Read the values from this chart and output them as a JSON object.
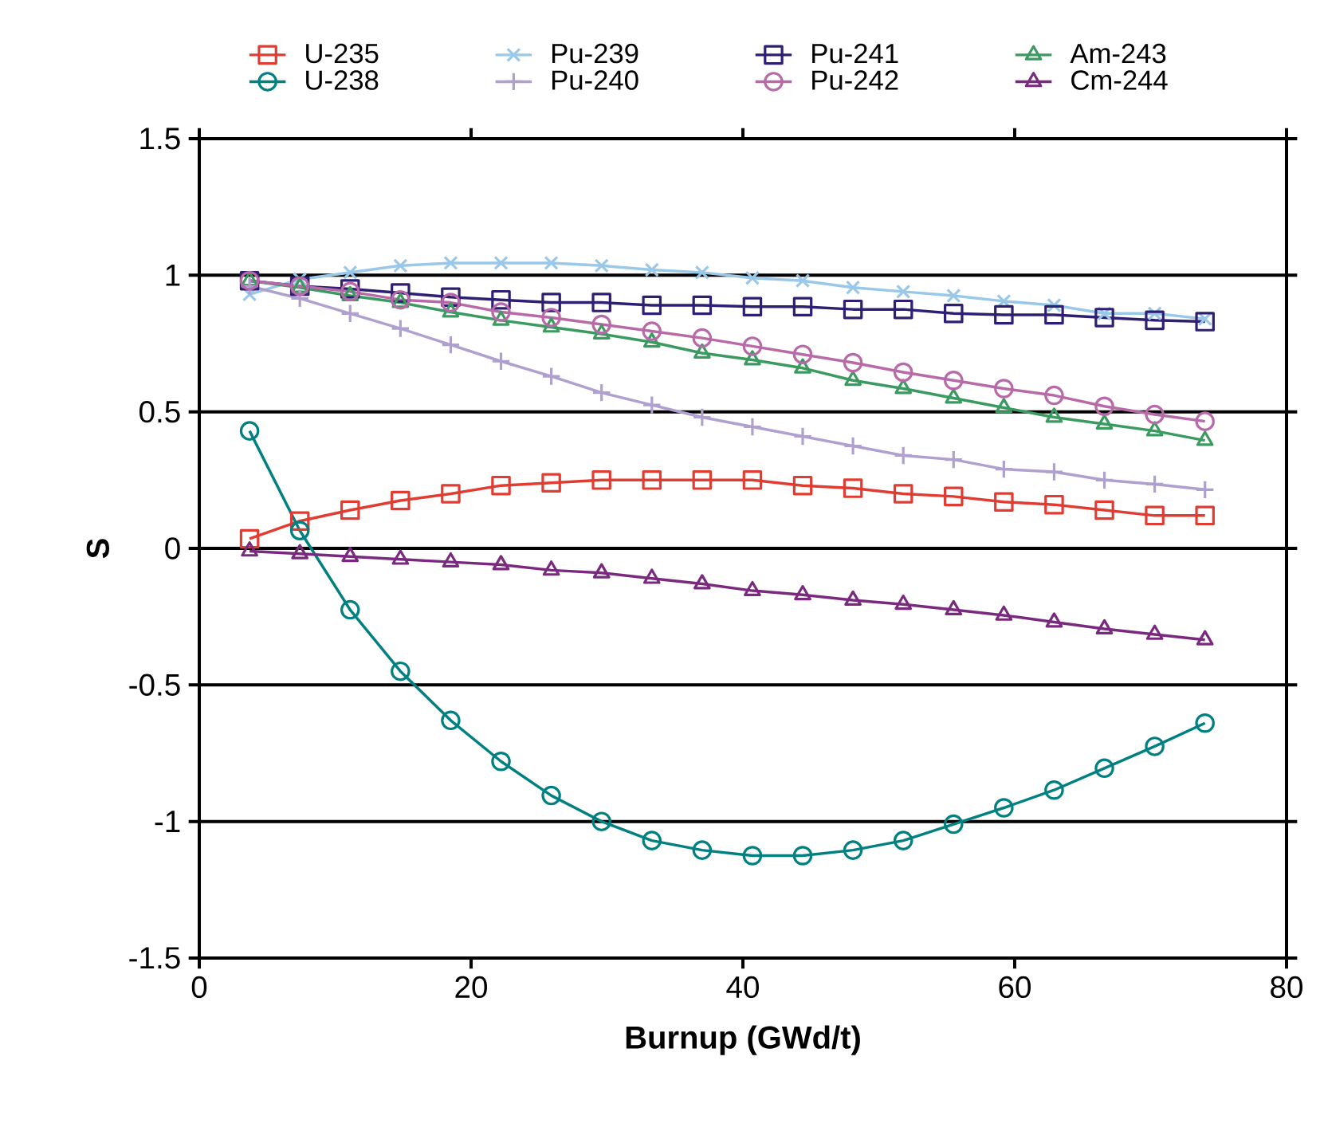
{
  "chart_data": {
    "type": "line",
    "xlabel": "Burnup (GWd/t)",
    "ylabel": "S",
    "x": [
      3.7,
      7.4,
      11.1,
      14.8,
      18.5,
      22.2,
      25.9,
      29.6,
      33.3,
      37.0,
      40.7,
      44.4,
      48.1,
      51.8,
      55.5,
      59.2,
      62.9,
      66.6,
      70.3,
      74.0
    ],
    "xlim": [
      0,
      80
    ],
    "xticks": [
      0,
      20,
      40,
      60,
      80
    ],
    "ylim": [
      -1.5,
      1.5
    ],
    "yticks": [
      -1.5,
      -1,
      -0.5,
      0,
      0.5,
      1,
      1.5
    ],
    "grid": "y",
    "legend": "top",
    "line_style": "solid",
    "series": [
      {
        "name": "U-235",
        "color": "#e03c31",
        "marker": "square",
        "values": [
          0.035,
          0.1,
          0.14,
          0.175,
          0.2,
          0.23,
          0.24,
          0.25,
          0.25,
          0.25,
          0.25,
          0.23,
          0.22,
          0.2,
          0.19,
          0.17,
          0.16,
          0.14,
          0.12,
          0.12
        ]
      },
      {
        "name": "Pu-239",
        "color": "#99c8e8",
        "marker": "cross",
        "values": [
          0.93,
          0.985,
          1.01,
          1.035,
          1.045,
          1.045,
          1.045,
          1.035,
          1.02,
          1.01,
          0.99,
          0.98,
          0.955,
          0.94,
          0.925,
          0.905,
          0.89,
          0.86,
          0.86,
          0.84
        ]
      },
      {
        "name": "Pu-241",
        "color": "#2e1f73",
        "marker": "square",
        "values": [
          0.98,
          0.96,
          0.95,
          0.935,
          0.92,
          0.91,
          0.9,
          0.9,
          0.89,
          0.89,
          0.885,
          0.885,
          0.875,
          0.875,
          0.86,
          0.855,
          0.855,
          0.845,
          0.835,
          0.83
        ]
      },
      {
        "name": "Am-243",
        "color": "#3a9a60",
        "marker": "triangle",
        "values": [
          0.98,
          0.955,
          0.925,
          0.9,
          0.865,
          0.835,
          0.81,
          0.785,
          0.755,
          0.715,
          0.69,
          0.66,
          0.615,
          0.585,
          0.55,
          0.515,
          0.48,
          0.455,
          0.43,
          0.395
        ]
      },
      {
        "name": "U-238",
        "color": "#008080",
        "marker": "circle",
        "values": [
          0.43,
          0.065,
          -0.225,
          -0.45,
          -0.63,
          -0.78,
          -0.905,
          -1.0,
          -1.07,
          -1.105,
          -1.125,
          -1.125,
          -1.105,
          -1.07,
          -1.01,
          -0.95,
          -0.885,
          -0.805,
          -0.725,
          -0.64
        ]
      },
      {
        "name": "Pu-240",
        "color": "#b0a0d0",
        "marker": "plus",
        "values": [
          0.96,
          0.915,
          0.86,
          0.805,
          0.745,
          0.685,
          0.63,
          0.57,
          0.525,
          0.48,
          0.445,
          0.41,
          0.375,
          0.34,
          0.325,
          0.29,
          0.28,
          0.25,
          0.235,
          0.215
        ]
      },
      {
        "name": "Pu-242",
        "color": "#b86aa8",
        "marker": "circle",
        "values": [
          0.98,
          0.96,
          0.94,
          0.91,
          0.9,
          0.865,
          0.845,
          0.82,
          0.795,
          0.77,
          0.74,
          0.71,
          0.68,
          0.645,
          0.615,
          0.585,
          0.56,
          0.52,
          0.49,
          0.465
        ]
      },
      {
        "name": "Cm-244",
        "color": "#7a2a7e",
        "marker": "triangle",
        "values": [
          -0.01,
          -0.02,
          -0.03,
          -0.04,
          -0.05,
          -0.06,
          -0.08,
          -0.09,
          -0.11,
          -0.13,
          -0.155,
          -0.17,
          -0.19,
          -0.205,
          -0.225,
          -0.245,
          -0.27,
          -0.295,
          -0.315,
          -0.335
        ]
      }
    ]
  }
}
